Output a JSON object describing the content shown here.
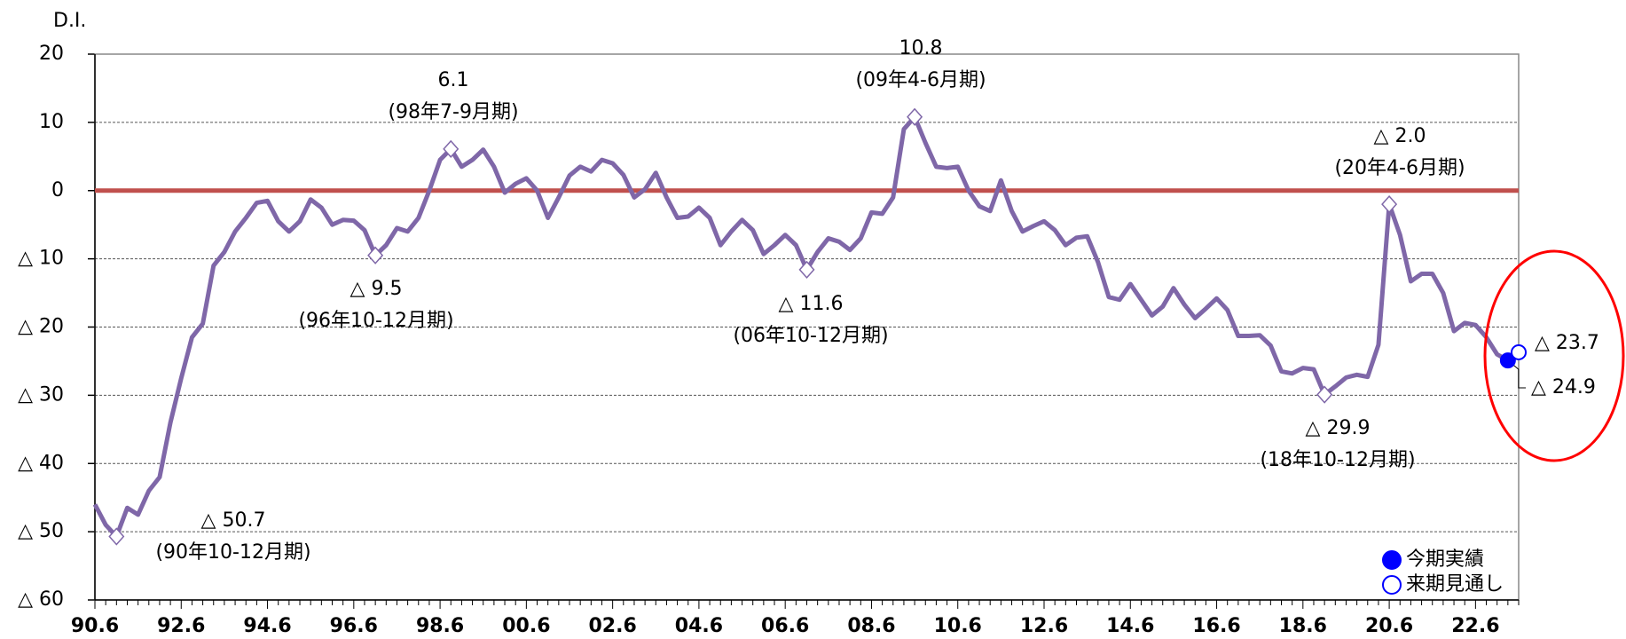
{
  "chart_data": {
    "type": "line",
    "y_label": "D.I.",
    "categories": [
      "90.6",
      null,
      null,
      null,
      null,
      null,
      null,
      null,
      "92.6",
      null,
      null,
      null,
      null,
      null,
      null,
      null,
      "94.6",
      null,
      null,
      null,
      null,
      null,
      null,
      null,
      "96.6",
      null,
      null,
      null,
      null,
      null,
      null,
      null,
      "98.6",
      null,
      null,
      null,
      null,
      null,
      null,
      null,
      "00.6",
      null,
      null,
      null,
      null,
      null,
      null,
      null,
      "02.6",
      null,
      null,
      null,
      null,
      null,
      null,
      null,
      "04.6",
      null,
      null,
      null,
      null,
      null,
      null,
      null,
      "06.6",
      null,
      null,
      null,
      null,
      null,
      null,
      null,
      "08.6",
      null,
      null,
      null,
      null,
      null,
      null,
      null,
      "10.6",
      null,
      null,
      null,
      null,
      null,
      null,
      null,
      "12.6",
      null,
      null,
      null,
      null,
      null,
      null,
      null,
      "14.6",
      null,
      null,
      null,
      null,
      null,
      null,
      null,
      "16.6",
      null,
      null,
      null,
      null,
      null,
      null,
      null,
      "18.6",
      null,
      null,
      null,
      null,
      null,
      null,
      null,
      "20.6",
      null,
      null,
      null,
      null,
      null,
      null,
      null,
      "22.6",
      null,
      null,
      null,
      null
    ],
    "series": [
      {
        "color": "#7f67a8",
        "values": [
          -46,
          -49,
          -50.7,
          -46.5,
          -47.5,
          -44,
          -42,
          -34,
          -27.5,
          -21.5,
          -19.5,
          -11,
          -9,
          -6,
          -4,
          -1.8,
          -1.5,
          -4.5,
          -6,
          -4.5,
          -1.3,
          -2.5,
          -5,
          -4.3,
          -4.4,
          -5.8,
          -9.5,
          -8,
          -5.5,
          -6,
          -4,
          0,
          4.5,
          6.1,
          3.5,
          4.5,
          6,
          3.5,
          -0.3,
          1,
          1.8,
          0,
          -4,
          -1,
          2.2,
          3.5,
          2.8,
          4.5,
          4,
          2.3,
          -1,
          0.2,
          2.6,
          -1,
          -4,
          -3.8,
          -2.5,
          -4,
          -8,
          -6,
          -4.3,
          -5.8,
          -9.3,
          -8,
          -6.5,
          -8,
          -11.6,
          -9,
          -7,
          -7.5,
          -8.7,
          -7,
          -3.2,
          -3.4,
          -1,
          9,
          10.8,
          7,
          3.5,
          3.3,
          3.5,
          0,
          -2.3,
          -3,
          1.5,
          -3,
          -6,
          -5.2,
          -4.5,
          -5.8,
          -8,
          -6.9,
          -6.7,
          -10.5,
          -15.6,
          -16,
          -13.7,
          -16,
          -18.3,
          -17,
          -14.3,
          -16.7,
          -18.7,
          -17.3,
          -15.8,
          -17.5,
          -21.3,
          -21.3,
          -21.2,
          -22.7,
          -26.5,
          -26.8,
          -26,
          -26.2,
          -29.9,
          -28.7,
          -27.4,
          -27,
          -27.3,
          -22.6,
          -2,
          -6.5,
          -13.3,
          -12.2,
          -12.2,
          -15,
          -20.6,
          -19.4,
          -19.7,
          -21.5,
          -24,
          -24.9,
          null
        ]
      },
      {
        "name": "今期実績",
        "color": "#0000ff",
        "marker": "filled",
        "values": [
          null,
          null,
          null,
          null,
          null,
          null,
          null,
          null,
          null,
          null,
          null,
          null,
          null,
          null,
          null,
          null,
          null,
          null,
          null,
          null,
          null,
          null,
          null,
          null,
          null,
          null,
          null,
          null,
          null,
          null,
          null,
          null,
          null,
          null,
          null,
          null,
          null,
          null,
          null,
          null,
          null,
          null,
          null,
          null,
          null,
          null,
          null,
          null,
          null,
          null,
          null,
          null,
          null,
          null,
          null,
          null,
          null,
          null,
          null,
          null,
          null,
          null,
          null,
          null,
          null,
          null,
          null,
          null,
          null,
          null,
          null,
          null,
          null,
          null,
          null,
          null,
          null,
          null,
          null,
          null,
          null,
          null,
          null,
          null,
          null,
          null,
          null,
          null,
          null,
          null,
          null,
          null,
          null,
          null,
          null,
          null,
          null,
          null,
          null,
          null,
          null,
          null,
          null,
          null,
          null,
          null,
          null,
          null,
          null,
          null,
          null,
          null,
          null,
          null,
          null,
          null,
          null,
          null,
          null,
          null,
          null,
          null,
          null,
          null,
          null,
          null,
          null,
          null,
          null,
          null,
          null,
          -24.9,
          null
        ],
        "value_labels": [
          null,
          null,
          null,
          null,
          null,
          null,
          null,
          null,
          null,
          null,
          null,
          null,
          null,
          null,
          null,
          null,
          null,
          null,
          null,
          null,
          null,
          null,
          null,
          null,
          null,
          null,
          null,
          null,
          null,
          null,
          null,
          null,
          null,
          null,
          null,
          null,
          null,
          null,
          null,
          null,
          null,
          null,
          null,
          null,
          null,
          null,
          null,
          null,
          null,
          null,
          null,
          null,
          null,
          null,
          null,
          null,
          null,
          null,
          null,
          null,
          null,
          null,
          null,
          null,
          null,
          null,
          null,
          null,
          null,
          null,
          null,
          null,
          null,
          null,
          null,
          null,
          null,
          null,
          null,
          null,
          null,
          null,
          null,
          null,
          null,
          null,
          null,
          null,
          null,
          null,
          null,
          null,
          null,
          null,
          null,
          null,
          null,
          null,
          null,
          null,
          null,
          null,
          null,
          null,
          null,
          null,
          null,
          null,
          null,
          null,
          null,
          null,
          null,
          null,
          null,
          null,
          null,
          null,
          null,
          null,
          null,
          null,
          null,
          null,
          null,
          null,
          null,
          null,
          null,
          null,
          null,
          "△ 24.9",
          null
        ]
      },
      {
        "name": "来期見通し",
        "color": "#0000ff",
        "marker": "open",
        "values": [
          null,
          null,
          null,
          null,
          null,
          null,
          null,
          null,
          null,
          null,
          null,
          null,
          null,
          null,
          null,
          null,
          null,
          null,
          null,
          null,
          null,
          null,
          null,
          null,
          null,
          null,
          null,
          null,
          null,
          null,
          null,
          null,
          null,
          null,
          null,
          null,
          null,
          null,
          null,
          null,
          null,
          null,
          null,
          null,
          null,
          null,
          null,
          null,
          null,
          null,
          null,
          null,
          null,
          null,
          null,
          null,
          null,
          null,
          null,
          null,
          null,
          null,
          null,
          null,
          null,
          null,
          null,
          null,
          null,
          null,
          null,
          null,
          null,
          null,
          null,
          null,
          null,
          null,
          null,
          null,
          null,
          null,
          null,
          null,
          null,
          null,
          null,
          null,
          null,
          null,
          null,
          null,
          null,
          null,
          null,
          null,
          null,
          null,
          null,
          null,
          null,
          null,
          null,
          null,
          null,
          null,
          null,
          null,
          null,
          null,
          null,
          null,
          null,
          null,
          null,
          null,
          null,
          null,
          null,
          null,
          null,
          null,
          null,
          null,
          null,
          null,
          null,
          null,
          null,
          null,
          null,
          null,
          -23.7
        ],
        "value_labels": [
          null,
          null,
          null,
          null,
          null,
          null,
          null,
          null,
          null,
          null,
          null,
          null,
          null,
          null,
          null,
          null,
          null,
          null,
          null,
          null,
          null,
          null,
          null,
          null,
          null,
          null,
          null,
          null,
          null,
          null,
          null,
          null,
          null,
          null,
          null,
          null,
          null,
          null,
          null,
          null,
          null,
          null,
          null,
          null,
          null,
          null,
          null,
          null,
          null,
          null,
          null,
          null,
          null,
          null,
          null,
          null,
          null,
          null,
          null,
          null,
          null,
          null,
          null,
          null,
          null,
          null,
          null,
          null,
          null,
          null,
          null,
          null,
          null,
          null,
          null,
          null,
          null,
          null,
          null,
          null,
          null,
          null,
          null,
          null,
          null,
          null,
          null,
          null,
          null,
          null,
          null,
          null,
          null,
          null,
          null,
          null,
          null,
          null,
          null,
          null,
          null,
          null,
          null,
          null,
          null,
          null,
          null,
          null,
          null,
          null,
          null,
          null,
          null,
          null,
          null,
          null,
          null,
          null,
          null,
          null,
          null,
          null,
          null,
          null,
          null,
          null,
          null,
          null,
          null,
          null,
          null,
          null,
          "△ 23.7"
        ]
      }
    ],
    "annotations": [
      {
        "text": "△ 50.7",
        "note": "(90年10-12月期)"
      },
      {
        "text": "△ 9.5",
        "note": "(96年10-12月期)"
      },
      {
        "text": "6.1",
        "note": "(98年7-9月期)"
      },
      {
        "text": "△ 11.6",
        "note": "(06年10-12月期)"
      },
      {
        "text": "10.8",
        "note": "(09年4-6月期)"
      },
      {
        "text": "△ 29.9",
        "note": "(18年10-12月期)"
      },
      {
        "text": "△ 2.0",
        "note": "(20年4-6月期)"
      }
    ],
    "ylim": [
      -60,
      20
    ],
    "yticks": [
      {
        "value": -60,
        "label": "△ 60"
      },
      {
        "value": -50,
        "label": "△ 50"
      },
      {
        "value": -40,
        "label": "△ 40"
      },
      {
        "value": -30,
        "label": "△ 30"
      },
      {
        "value": -20,
        "label": "△ 20"
      },
      {
        "value": -10,
        "label": "△ 10"
      },
      0,
      10,
      20
    ],
    "grid": true,
    "zero_line_color": "#c0504d",
    "legend": "lower right"
  }
}
